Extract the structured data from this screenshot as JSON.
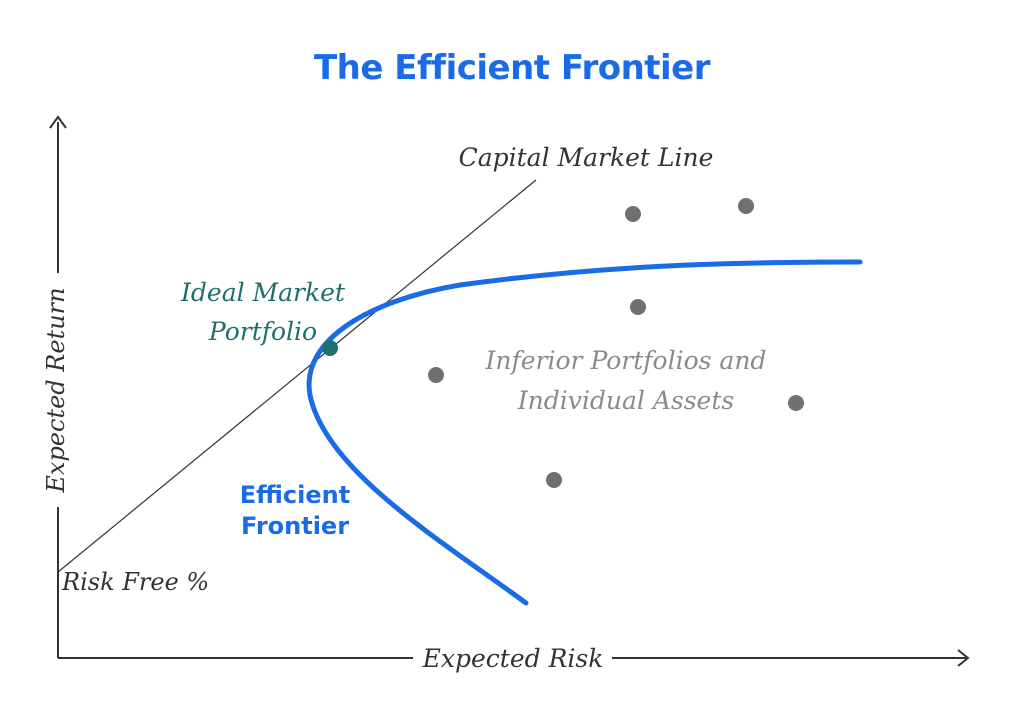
{
  "title": "The Efficient Frontier",
  "colors": {
    "title": "#1a6be6",
    "frontier": "#1a6be6",
    "market_point": "#1f6f6f",
    "market_label": "#1f6f6f",
    "asset_dots": "#707070",
    "inferior_label": "#8a8a8a",
    "axis": "#333333",
    "text": "#333333"
  },
  "axes": {
    "x_label": "Expected Risk",
    "y_label": "Expected Return"
  },
  "labels": {
    "capital_market_line": "Capital Market Line",
    "ideal_market_line1": "Ideal Market",
    "ideal_market_line2": "Portfolio",
    "inferior_line1": "Inferior Portfolios and",
    "inferior_line2": "Individual Assets",
    "efficient_line1": "Efficient",
    "efficient_line2": "Frontier",
    "risk_free": "Risk Free %"
  },
  "icons": [
    "x-axis-arrow-icon",
    "y-axis-arrow-icon"
  ]
}
